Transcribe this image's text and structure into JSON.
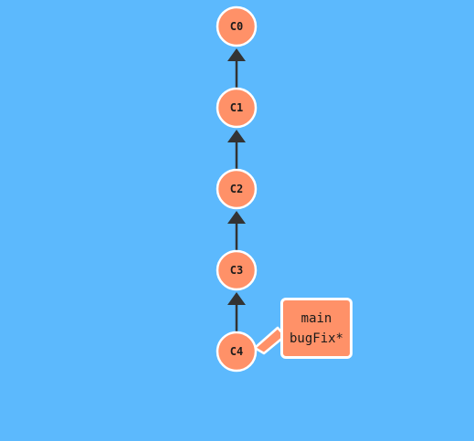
{
  "commits": [
    {
      "id": "C0"
    },
    {
      "id": "C1"
    },
    {
      "id": "C2"
    },
    {
      "id": "C3"
    },
    {
      "id": "C4"
    }
  ],
  "branch_tag": {
    "branches": [
      "main",
      "bugFix*"
    ],
    "points_to": "C4"
  },
  "colors": {
    "background": "#5cb9fd",
    "commit_fill": "#ff9168",
    "commit_stroke": "#ffffff",
    "edge": "#333333"
  }
}
